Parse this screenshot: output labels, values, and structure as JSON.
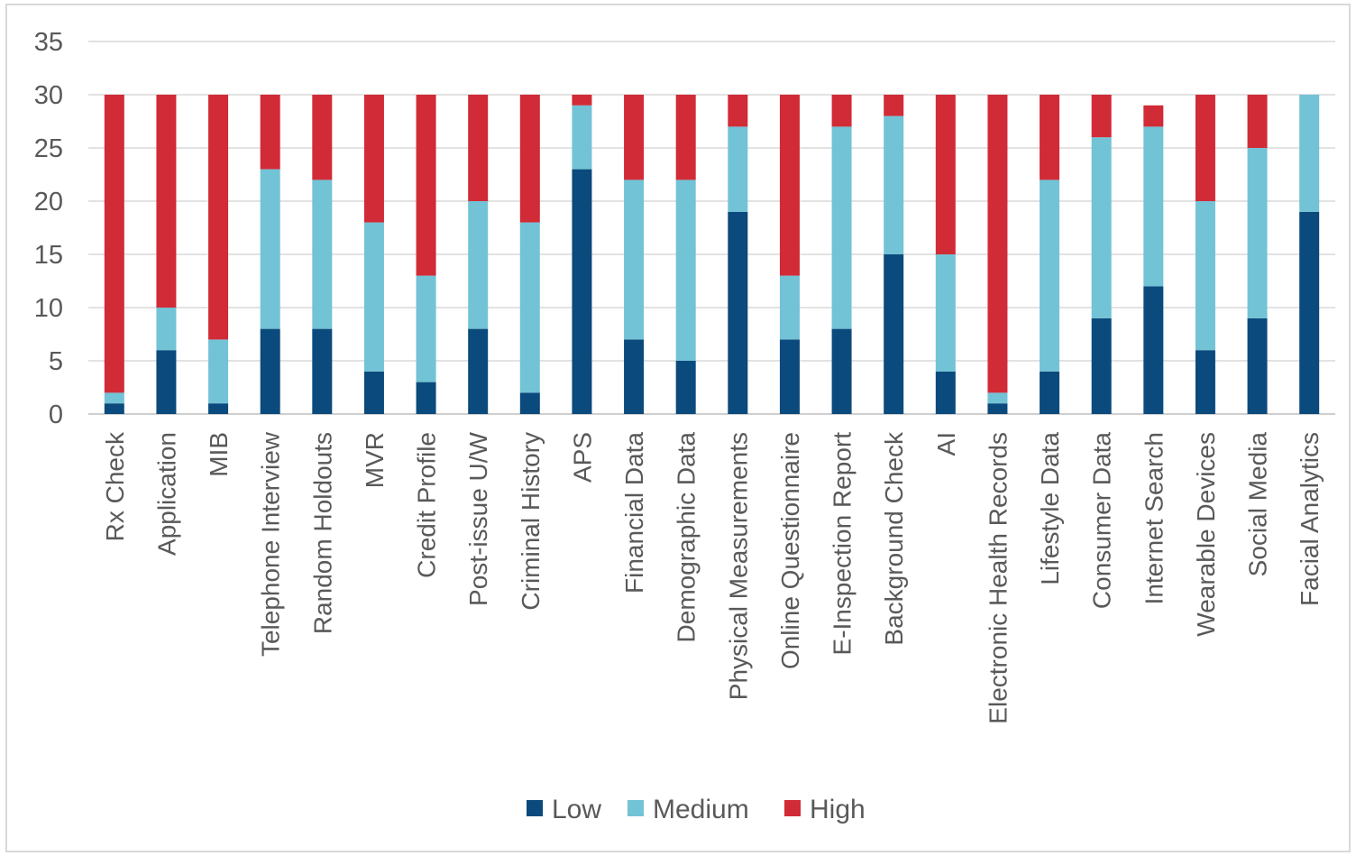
{
  "chart_data": {
    "type": "bar",
    "stacked": true,
    "title": "",
    "xlabel": "",
    "ylabel": "",
    "ylim": [
      0,
      35
    ],
    "yticks": [
      0,
      5,
      10,
      15,
      20,
      25,
      30,
      35
    ],
    "grid": true,
    "legend": "bottom",
    "categories": [
      "Rx Check",
      "Application",
      "MIB",
      "Telephone Interview",
      "Random Holdouts",
      "MVR",
      "Credit Profile",
      "Post-issue U/W",
      "Criminal History",
      "APS",
      "Financial Data",
      "Demographic Data",
      "Physical Measurements",
      "Online Questionnaire",
      "E-Inspection Report",
      "Background Check",
      "AI",
      "Electronic Health Records",
      "Lifestyle Data",
      "Consumer Data",
      "Internet Search",
      "Wearable Devices",
      "Social Media",
      "Facial Analytics"
    ],
    "series": [
      {
        "name": "Low",
        "color": "#0b4a7d",
        "values": [
          1,
          6,
          1,
          8,
          8,
          4,
          3,
          8,
          2,
          23,
          7,
          5,
          19,
          7,
          8,
          15,
          4,
          1,
          4,
          9,
          12,
          6,
          9,
          19
        ]
      },
      {
        "name": "Medium",
        "color": "#72c3d6",
        "values": [
          1,
          4,
          6,
          15,
          14,
          14,
          10,
          12,
          16,
          6,
          15,
          17,
          8,
          6,
          19,
          13,
          11,
          1,
          18,
          17,
          15,
          14,
          16,
          11
        ]
      },
      {
        "name": "High",
        "color": "#d12b37",
        "values": [
          28,
          20,
          23,
          7,
          8,
          12,
          17,
          10,
          12,
          1,
          8,
          8,
          3,
          17,
          3,
          2,
          15,
          28,
          8,
          4,
          2,
          10,
          5,
          0
        ]
      }
    ]
  }
}
